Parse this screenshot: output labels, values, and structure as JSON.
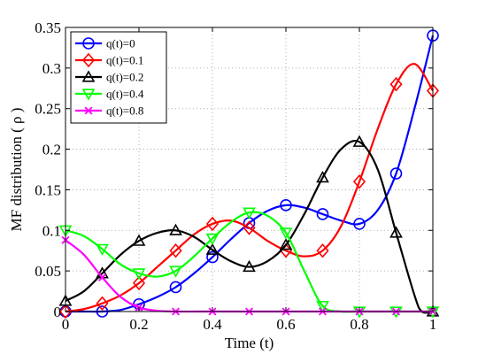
{
  "chart_data": {
    "type": "line",
    "title": "",
    "xlabel": "Time (t)",
    "ylabel": "MF distribution ( ρ )",
    "xlim": [
      0,
      1
    ],
    "ylim": [
      0,
      0.35
    ],
    "xticks": [
      0,
      0.2,
      0.4,
      0.6,
      0.8,
      1
    ],
    "xtick_labels": [
      "0",
      "0.2",
      "0.4",
      "0.6",
      "0.8",
      "1"
    ],
    "yticks": [
      0,
      0.05,
      0.1,
      0.15,
      0.2,
      0.25,
      0.3,
      0.35
    ],
    "ytick_labels": [
      "0",
      "0.05",
      "0.1",
      "0.15",
      "0.2",
      "0.25",
      "0.3",
      "0.35"
    ],
    "grid": true,
    "legend_position": "top-left",
    "series": [
      {
        "name": "q(t)=0",
        "color": "#0000ff",
        "marker": "circle",
        "x": [
          0,
          0.1,
          0.2,
          0.3,
          0.4,
          0.5,
          0.6,
          0.7,
          0.8,
          0.9,
          1.0
        ],
        "y": [
          0,
          0,
          0.009,
          0.03,
          0.067,
          0.109,
          0.131,
          0.12,
          0.108,
          0.17,
          0.34
        ],
        "curve": [
          [
            0,
            0
          ],
          [
            0.05,
            0
          ],
          [
            0.1,
            0
          ],
          [
            0.15,
            0.002
          ],
          [
            0.2,
            0.009
          ],
          [
            0.25,
            0.018
          ],
          [
            0.3,
            0.03
          ],
          [
            0.35,
            0.047
          ],
          [
            0.4,
            0.067
          ],
          [
            0.45,
            0.089
          ],
          [
            0.5,
            0.109
          ],
          [
            0.55,
            0.124
          ],
          [
            0.6,
            0.131
          ],
          [
            0.65,
            0.128
          ],
          [
            0.7,
            0.12
          ],
          [
            0.75,
            0.112
          ],
          [
            0.8,
            0.108
          ],
          [
            0.85,
            0.125
          ],
          [
            0.9,
            0.17
          ],
          [
            0.95,
            0.25
          ],
          [
            1.0,
            0.34
          ]
        ]
      },
      {
        "name": "q(t)=0.1",
        "color": "#ff0000",
        "marker": "diamond",
        "x": [
          0,
          0.1,
          0.2,
          0.3,
          0.4,
          0.5,
          0.6,
          0.7,
          0.8,
          0.9,
          1.0
        ],
        "y": [
          0,
          0.01,
          0.035,
          0.075,
          0.108,
          0.103,
          0.075,
          0.075,
          0.16,
          0.28,
          0.272
        ],
        "curve": [
          [
            0,
            0
          ],
          [
            0.05,
            0.003
          ],
          [
            0.1,
            0.01
          ],
          [
            0.15,
            0.02
          ],
          [
            0.2,
            0.035
          ],
          [
            0.25,
            0.055
          ],
          [
            0.3,
            0.075
          ],
          [
            0.35,
            0.095
          ],
          [
            0.4,
            0.108
          ],
          [
            0.45,
            0.112
          ],
          [
            0.5,
            0.103
          ],
          [
            0.55,
            0.087
          ],
          [
            0.6,
            0.075
          ],
          [
            0.65,
            0.068
          ],
          [
            0.7,
            0.075
          ],
          [
            0.75,
            0.105
          ],
          [
            0.8,
            0.16
          ],
          [
            0.85,
            0.225
          ],
          [
            0.9,
            0.28
          ],
          [
            0.95,
            0.305
          ],
          [
            1.0,
            0.272
          ]
        ]
      },
      {
        "name": "q(t)=0.2",
        "color": "#000000",
        "marker": "triangle-up",
        "x": [
          0,
          0.1,
          0.2,
          0.3,
          0.4,
          0.5,
          0.6,
          0.7,
          0.8,
          0.9,
          1.0
        ],
        "y": [
          0.013,
          0.047,
          0.087,
          0.1,
          0.076,
          0.055,
          0.082,
          0.165,
          0.209,
          0.097,
          0
        ],
        "curve": [
          [
            0,
            0.013
          ],
          [
            0.05,
            0.025
          ],
          [
            0.1,
            0.047
          ],
          [
            0.15,
            0.07
          ],
          [
            0.2,
            0.087
          ],
          [
            0.25,
            0.097
          ],
          [
            0.3,
            0.1
          ],
          [
            0.35,
            0.092
          ],
          [
            0.4,
            0.076
          ],
          [
            0.45,
            0.062
          ],
          [
            0.5,
            0.055
          ],
          [
            0.55,
            0.062
          ],
          [
            0.6,
            0.082
          ],
          [
            0.65,
            0.12
          ],
          [
            0.7,
            0.165
          ],
          [
            0.75,
            0.2
          ],
          [
            0.8,
            0.209
          ],
          [
            0.85,
            0.175
          ],
          [
            0.9,
            0.097
          ],
          [
            0.95,
            0.02
          ],
          [
            0.97,
            0
          ],
          [
            1.0,
            0
          ]
        ]
      },
      {
        "name": "q(t)=0.4",
        "color": "#00ff00",
        "marker": "triangle-down",
        "x": [
          0,
          0.1,
          0.2,
          0.3,
          0.4,
          0.5,
          0.6,
          0.7,
          0.8,
          0.9,
          1.0
        ],
        "y": [
          0.1,
          0.077,
          0.047,
          0.05,
          0.09,
          0.122,
          0.097,
          0.007,
          0,
          0,
          0
        ],
        "curve": [
          [
            0,
            0.1
          ],
          [
            0.05,
            0.093
          ],
          [
            0.1,
            0.077
          ],
          [
            0.15,
            0.058
          ],
          [
            0.2,
            0.047
          ],
          [
            0.25,
            0.043
          ],
          [
            0.3,
            0.05
          ],
          [
            0.35,
            0.068
          ],
          [
            0.4,
            0.09
          ],
          [
            0.45,
            0.11
          ],
          [
            0.5,
            0.122
          ],
          [
            0.55,
            0.118
          ],
          [
            0.6,
            0.097
          ],
          [
            0.65,
            0.05
          ],
          [
            0.7,
            0.007
          ],
          [
            0.75,
            0
          ],
          [
            0.8,
            0
          ],
          [
            0.9,
            0
          ],
          [
            1.0,
            0
          ]
        ]
      },
      {
        "name": "q(t)=0.8",
        "color": "#ff00ff",
        "marker": "x",
        "x": [
          0,
          0.1,
          0.2,
          0.3,
          0.4,
          0.5,
          0.6,
          0.7,
          0.8,
          0.9,
          1.0
        ],
        "y": [
          0.088,
          0.042,
          0.005,
          0,
          0,
          0,
          0,
          0,
          0,
          0,
          0
        ],
        "curve": [
          [
            0,
            0.088
          ],
          [
            0.05,
            0.07
          ],
          [
            0.1,
            0.042
          ],
          [
            0.15,
            0.018
          ],
          [
            0.2,
            0.005
          ],
          [
            0.25,
            0.001
          ],
          [
            0.3,
            0
          ],
          [
            0.4,
            0
          ],
          [
            0.5,
            0
          ],
          [
            0.6,
            0
          ],
          [
            0.7,
            0
          ],
          [
            0.8,
            0
          ],
          [
            0.9,
            0
          ],
          [
            1.0,
            0
          ]
        ]
      }
    ]
  }
}
